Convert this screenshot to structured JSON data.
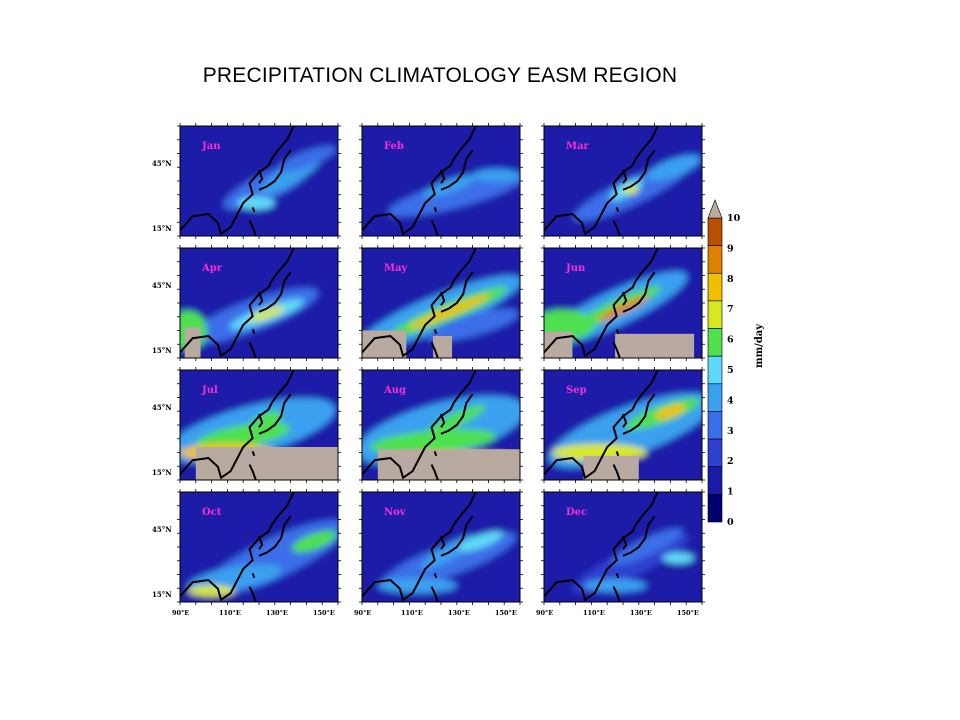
{
  "title": "PRECIPITATION CLIMATOLOGY EASM REGION",
  "months": [
    "Jan",
    "Feb",
    "Mar",
    "Apr",
    "May",
    "Jun",
    "Jul",
    "Aug",
    "Sep",
    "Oct",
    "Nov",
    "Dec"
  ],
  "lat_ticks": [
    "45°N",
    "15°N"
  ],
  "lon_ticks": [
    "90°E",
    "110°E",
    "130°E",
    "150°E"
  ],
  "colorbar": {
    "unit": "mm/day",
    "labels": [
      "0",
      "1",
      "2",
      "3",
      "4",
      "5",
      "6",
      "7",
      "8",
      "9",
      "10"
    ],
    "colors": [
      "#000070",
      "#1a1aa8",
      "#2f3fd0",
      "#3a6ee8",
      "#3aa0f0",
      "#60d8f8",
      "#50e050",
      "#d8e820",
      "#f0c000",
      "#e08000",
      "#b85000"
    ],
    "over_color": "#b8aaa0"
  },
  "colors": {
    "month_label": "#ff2bd6",
    "land_mask": "#b8aaa0",
    "coast": "#000000"
  }
}
